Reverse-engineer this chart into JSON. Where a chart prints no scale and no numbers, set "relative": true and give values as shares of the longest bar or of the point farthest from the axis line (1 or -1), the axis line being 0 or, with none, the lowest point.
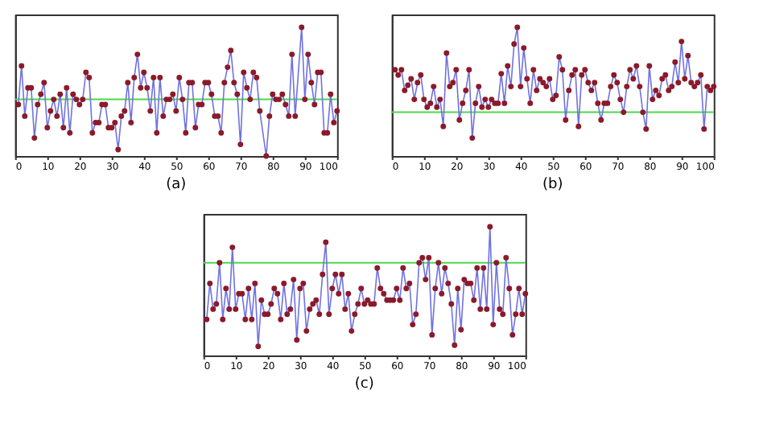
{
  "chart_data": [
    {
      "type": "line",
      "title": "(a)",
      "relative": true,
      "marker": "circle",
      "line_style": "solid",
      "grid": false,
      "xlim": [
        0,
        100
      ],
      "xticks": [
        0,
        10,
        20,
        30,
        40,
        50,
        60,
        70,
        80,
        90,
        100
      ],
      "x": [
        1,
        2,
        3,
        4,
        5,
        6,
        7,
        8,
        9,
        10,
        11,
        12,
        13,
        14,
        15,
        16,
        17,
        18,
        19,
        20,
        21,
        22,
        23,
        24,
        25,
        26,
        27,
        28,
        29,
        30,
        31,
        32,
        33,
        34,
        35,
        36,
        37,
        38,
        39,
        40,
        41,
        42,
        43,
        44,
        45,
        46,
        47,
        48,
        49,
        50,
        51,
        52,
        53,
        54,
        55,
        56,
        57,
        58,
        59,
        60,
        61,
        62,
        63,
        64,
        65,
        66,
        67,
        68,
        69,
        70,
        71,
        72,
        73,
        74,
        75,
        76,
        78,
        79,
        80,
        81,
        82,
        83,
        84,
        85,
        86,
        87,
        89,
        90,
        91,
        92,
        93,
        94,
        95,
        96,
        97,
        98,
        99,
        100
      ],
      "series": [
        {
          "color": "#6f72e0",
          "values": [
            0.4,
            0.7,
            0.31,
            0.53,
            0.53,
            0.14,
            0.4,
            0.48,
            0.57,
            0.22,
            0.35,
            0.44,
            0.31,
            0.48,
            0.22,
            0.53,
            0.18,
            0.48,
            0.44,
            0.4,
            0.44,
            0.65,
            0.61,
            0.18,
            0.26,
            0.26,
            0.4,
            0.4,
            0.22,
            0.22,
            0.26,
            0.05,
            0.31,
            0.35,
            0.57,
            0.26,
            0.61,
            0.79,
            0.53,
            0.65,
            0.53,
            0.35,
            0.61,
            0.18,
            0.61,
            0.31,
            0.44,
            0.44,
            0.48,
            0.35,
            0.61,
            0.44,
            0.18,
            0.57,
            0.57,
            0.22,
            0.4,
            0.4,
            0.57,
            0.57,
            0.48,
            0.31,
            0.31,
            0.18,
            0.57,
            0.69,
            0.82,
            0.57,
            0.48,
            0.09,
            0.65,
            0.53,
            0.44,
            0.65,
            0.61,
            0.35,
            0,
            0.31,
            0.48,
            0.44,
            0.44,
            0.48,
            0.4,
            0.31,
            0.79,
            0.31,
            1,
            0.44,
            0.79,
            0.57,
            0.4,
            0.65,
            0.65,
            0.18,
            0.18,
            0.48,
            0.26,
            0.35
          ]
        }
      ],
      "ref_lines": [
        {
          "axis": "y",
          "value": 0.44,
          "color": "#4cd84c"
        }
      ]
    },
    {
      "type": "line",
      "title": "(b)",
      "relative": true,
      "marker": "circle",
      "line_style": "solid",
      "grid": false,
      "xlim": [
        0,
        100
      ],
      "xticks": [
        0,
        10,
        20,
        30,
        40,
        50,
        60,
        70,
        80,
        90,
        100
      ],
      "x": [
        1,
        2,
        3,
        4,
        5,
        6,
        7,
        8,
        9,
        10,
        11,
        12,
        13,
        14,
        15,
        16,
        17,
        18,
        19,
        20,
        21,
        22,
        23,
        24,
        25,
        26,
        27,
        28,
        29,
        30,
        31,
        32,
        33,
        34,
        35,
        36,
        37,
        38,
        39,
        40,
        41,
        42,
        43,
        44,
        45,
        46,
        47,
        48,
        49,
        50,
        51,
        52,
        53,
        54,
        55,
        56,
        57,
        58,
        59,
        60,
        61,
        62,
        63,
        64,
        65,
        66,
        67,
        68,
        69,
        70,
        71,
        72,
        73,
        74,
        75,
        76,
        77,
        78,
        79,
        80,
        81,
        82,
        83,
        84,
        85,
        86,
        87,
        88,
        89,
        90,
        91,
        92,
        93,
        94,
        95,
        96,
        97,
        98,
        99,
        100
      ],
      "series": [
        {
          "color": "#6f72e0",
          "values": [
            0.67,
            0.63,
            0.67,
            0.51,
            0.55,
            0.6,
            0.44,
            0.57,
            0.63,
            0.44,
            0.38,
            0.41,
            0.54,
            0.38,
            0.44,
            0.23,
            0.8,
            0.54,
            0.57,
            0.67,
            0.28,
            0.41,
            0.51,
            0.67,
            0.14,
            0.41,
            0.54,
            0.38,
            0.44,
            0.38,
            0.44,
            0.41,
            0.41,
            0.64,
            0.41,
            0.7,
            0.54,
            0.87,
            1,
            0.54,
            0.84,
            0.6,
            0.41,
            0.67,
            0.51,
            0.6,
            0.57,
            0.54,
            0.6,
            0.44,
            0.47,
            0.77,
            0.67,
            0.28,
            0.51,
            0.63,
            0.67,
            0.23,
            0.63,
            0.67,
            0.57,
            0.51,
            0.57,
            0.41,
            0.28,
            0.41,
            0.41,
            0.54,
            0.63,
            0.57,
            0.44,
            0.34,
            0.54,
            0.67,
            0.6,
            0.7,
            0.54,
            0.34,
            0.21,
            0.7,
            0.44,
            0.51,
            0.47,
            0.6,
            0.63,
            0.51,
            0.54,
            0.73,
            0.57,
            0.89,
            0.6,
            0.78,
            0.57,
            0.54,
            0.57,
            0.63,
            0.21,
            0.54,
            0.51,
            0.54
          ]
        }
      ],
      "ref_lines": [
        {
          "axis": "y",
          "value": 0.34,
          "color": "#4cd84c"
        }
      ]
    },
    {
      "type": "line",
      "title": "(c)",
      "relative": true,
      "marker": "circle",
      "line_style": "solid",
      "grid": false,
      "xlim": [
        0,
        100
      ],
      "xticks": [
        0,
        10,
        20,
        30,
        40,
        50,
        60,
        70,
        80,
        90,
        100
      ],
      "x": [
        1,
        2,
        3,
        4,
        5,
        6,
        7,
        8,
        9,
        10,
        11,
        12,
        13,
        14,
        15,
        16,
        17,
        18,
        19,
        20,
        21,
        22,
        23,
        24,
        25,
        26,
        27,
        28,
        29,
        30,
        31,
        32,
        33,
        34,
        35,
        36,
        37,
        38,
        39,
        40,
        41,
        42,
        43,
        44,
        45,
        46,
        47,
        48,
        49,
        50,
        51,
        52,
        53,
        54,
        55,
        56,
        57,
        58,
        59,
        60,
        61,
        62,
        63,
        64,
        65,
        66,
        67,
        68,
        69,
        70,
        71,
        72,
        73,
        74,
        75,
        76,
        77,
        78,
        79,
        80,
        81,
        82,
        83,
        84,
        85,
        86,
        87,
        88,
        89,
        90,
        91,
        92,
        93,
        94,
        95,
        96,
        97,
        98,
        99,
        100
      ],
      "series": [
        {
          "color": "#6f72e0",
          "values": [
            0.28,
            0.56,
            0.36,
            0.4,
            0.72,
            0.28,
            0.52,
            0.36,
            0.84,
            0.36,
            0.48,
            0.48,
            0.28,
            0.52,
            0.28,
            0.56,
            0.07,
            0.43,
            0.32,
            0.32,
            0.4,
            0.52,
            0.48,
            0.28,
            0.56,
            0.32,
            0.36,
            0.59,
            0.12,
            0.52,
            0.56,
            0.19,
            0.36,
            0.4,
            0.43,
            0.32,
            0.63,
            0.88,
            0.32,
            0.52,
            0.63,
            0.48,
            0.63,
            0.36,
            0.48,
            0.19,
            0.32,
            0.4,
            0.52,
            0.4,
            0.43,
            0.4,
            0.4,
            0.68,
            0.52,
            0.48,
            0.43,
            0.43,
            0.43,
            0.52,
            0.43,
            0.68,
            0.52,
            0.56,
            0.24,
            0.32,
            0.72,
            0.76,
            0.59,
            0.76,
            0.16,
            0.52,
            0.72,
            0.48,
            0.68,
            0.56,
            0.4,
            0.08,
            0.52,
            0.2,
            0.59,
            0.56,
            0.56,
            0.43,
            0.68,
            0.36,
            0.68,
            0.36,
            1,
            0.24,
            0.72,
            0.36,
            0.32,
            0.76,
            0.52,
            0.16,
            0.32,
            0.52,
            0.32,
            0.48
          ]
        }
      ],
      "ref_lines": [
        {
          "axis": "y",
          "value": 0.72,
          "color": "#4cd84c"
        }
      ]
    }
  ]
}
